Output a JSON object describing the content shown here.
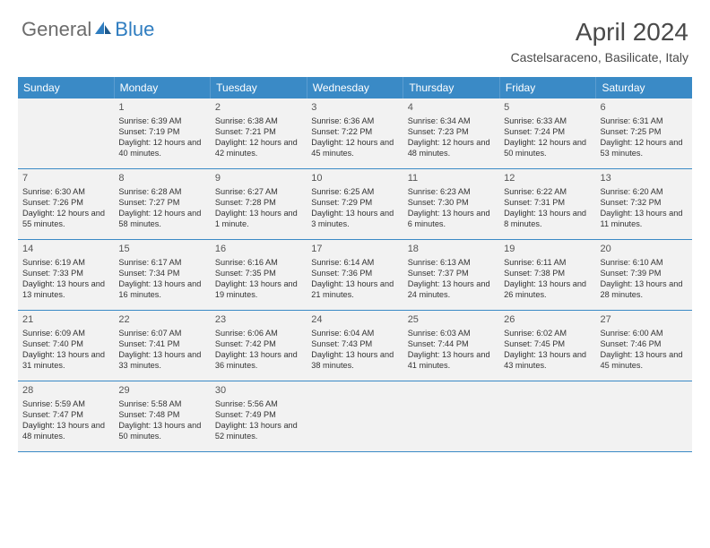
{
  "logo": {
    "part1": "General",
    "part2": "Blue"
  },
  "title": "April 2024",
  "location": "Castelsaraceno, Basilicate, Italy",
  "weekdays": [
    "Sunday",
    "Monday",
    "Tuesday",
    "Wednesday",
    "Thursday",
    "Friday",
    "Saturday"
  ],
  "colors": {
    "header_bg": "#3a8ac6",
    "header_text": "#ffffff",
    "cell_bg": "#f2f2f2",
    "text": "#333333",
    "logo_gray": "#6c6c6c",
    "logo_blue": "#2f7dc0",
    "row_border": "#3a8ac6"
  },
  "weeks": [
    [
      {
        "day": "",
        "sunrise": "",
        "sunset": "",
        "daylight": ""
      },
      {
        "day": "1",
        "sunrise": "Sunrise: 6:39 AM",
        "sunset": "Sunset: 7:19 PM",
        "daylight": "Daylight: 12 hours and 40 minutes."
      },
      {
        "day": "2",
        "sunrise": "Sunrise: 6:38 AM",
        "sunset": "Sunset: 7:21 PM",
        "daylight": "Daylight: 12 hours and 42 minutes."
      },
      {
        "day": "3",
        "sunrise": "Sunrise: 6:36 AM",
        "sunset": "Sunset: 7:22 PM",
        "daylight": "Daylight: 12 hours and 45 minutes."
      },
      {
        "day": "4",
        "sunrise": "Sunrise: 6:34 AM",
        "sunset": "Sunset: 7:23 PM",
        "daylight": "Daylight: 12 hours and 48 minutes."
      },
      {
        "day": "5",
        "sunrise": "Sunrise: 6:33 AM",
        "sunset": "Sunset: 7:24 PM",
        "daylight": "Daylight: 12 hours and 50 minutes."
      },
      {
        "day": "6",
        "sunrise": "Sunrise: 6:31 AM",
        "sunset": "Sunset: 7:25 PM",
        "daylight": "Daylight: 12 hours and 53 minutes."
      }
    ],
    [
      {
        "day": "7",
        "sunrise": "Sunrise: 6:30 AM",
        "sunset": "Sunset: 7:26 PM",
        "daylight": "Daylight: 12 hours and 55 minutes."
      },
      {
        "day": "8",
        "sunrise": "Sunrise: 6:28 AM",
        "sunset": "Sunset: 7:27 PM",
        "daylight": "Daylight: 12 hours and 58 minutes."
      },
      {
        "day": "9",
        "sunrise": "Sunrise: 6:27 AM",
        "sunset": "Sunset: 7:28 PM",
        "daylight": "Daylight: 13 hours and 1 minute."
      },
      {
        "day": "10",
        "sunrise": "Sunrise: 6:25 AM",
        "sunset": "Sunset: 7:29 PM",
        "daylight": "Daylight: 13 hours and 3 minutes."
      },
      {
        "day": "11",
        "sunrise": "Sunrise: 6:23 AM",
        "sunset": "Sunset: 7:30 PM",
        "daylight": "Daylight: 13 hours and 6 minutes."
      },
      {
        "day": "12",
        "sunrise": "Sunrise: 6:22 AM",
        "sunset": "Sunset: 7:31 PM",
        "daylight": "Daylight: 13 hours and 8 minutes."
      },
      {
        "day": "13",
        "sunrise": "Sunrise: 6:20 AM",
        "sunset": "Sunset: 7:32 PM",
        "daylight": "Daylight: 13 hours and 11 minutes."
      }
    ],
    [
      {
        "day": "14",
        "sunrise": "Sunrise: 6:19 AM",
        "sunset": "Sunset: 7:33 PM",
        "daylight": "Daylight: 13 hours and 13 minutes."
      },
      {
        "day": "15",
        "sunrise": "Sunrise: 6:17 AM",
        "sunset": "Sunset: 7:34 PM",
        "daylight": "Daylight: 13 hours and 16 minutes."
      },
      {
        "day": "16",
        "sunrise": "Sunrise: 6:16 AM",
        "sunset": "Sunset: 7:35 PM",
        "daylight": "Daylight: 13 hours and 19 minutes."
      },
      {
        "day": "17",
        "sunrise": "Sunrise: 6:14 AM",
        "sunset": "Sunset: 7:36 PM",
        "daylight": "Daylight: 13 hours and 21 minutes."
      },
      {
        "day": "18",
        "sunrise": "Sunrise: 6:13 AM",
        "sunset": "Sunset: 7:37 PM",
        "daylight": "Daylight: 13 hours and 24 minutes."
      },
      {
        "day": "19",
        "sunrise": "Sunrise: 6:11 AM",
        "sunset": "Sunset: 7:38 PM",
        "daylight": "Daylight: 13 hours and 26 minutes."
      },
      {
        "day": "20",
        "sunrise": "Sunrise: 6:10 AM",
        "sunset": "Sunset: 7:39 PM",
        "daylight": "Daylight: 13 hours and 28 minutes."
      }
    ],
    [
      {
        "day": "21",
        "sunrise": "Sunrise: 6:09 AM",
        "sunset": "Sunset: 7:40 PM",
        "daylight": "Daylight: 13 hours and 31 minutes."
      },
      {
        "day": "22",
        "sunrise": "Sunrise: 6:07 AM",
        "sunset": "Sunset: 7:41 PM",
        "daylight": "Daylight: 13 hours and 33 minutes."
      },
      {
        "day": "23",
        "sunrise": "Sunrise: 6:06 AM",
        "sunset": "Sunset: 7:42 PM",
        "daylight": "Daylight: 13 hours and 36 minutes."
      },
      {
        "day": "24",
        "sunrise": "Sunrise: 6:04 AM",
        "sunset": "Sunset: 7:43 PM",
        "daylight": "Daylight: 13 hours and 38 minutes."
      },
      {
        "day": "25",
        "sunrise": "Sunrise: 6:03 AM",
        "sunset": "Sunset: 7:44 PM",
        "daylight": "Daylight: 13 hours and 41 minutes."
      },
      {
        "day": "26",
        "sunrise": "Sunrise: 6:02 AM",
        "sunset": "Sunset: 7:45 PM",
        "daylight": "Daylight: 13 hours and 43 minutes."
      },
      {
        "day": "27",
        "sunrise": "Sunrise: 6:00 AM",
        "sunset": "Sunset: 7:46 PM",
        "daylight": "Daylight: 13 hours and 45 minutes."
      }
    ],
    [
      {
        "day": "28",
        "sunrise": "Sunrise: 5:59 AM",
        "sunset": "Sunset: 7:47 PM",
        "daylight": "Daylight: 13 hours and 48 minutes."
      },
      {
        "day": "29",
        "sunrise": "Sunrise: 5:58 AM",
        "sunset": "Sunset: 7:48 PM",
        "daylight": "Daylight: 13 hours and 50 minutes."
      },
      {
        "day": "30",
        "sunrise": "Sunrise: 5:56 AM",
        "sunset": "Sunset: 7:49 PM",
        "daylight": "Daylight: 13 hours and 52 minutes."
      },
      {
        "day": "",
        "sunrise": "",
        "sunset": "",
        "daylight": ""
      },
      {
        "day": "",
        "sunrise": "",
        "sunset": "",
        "daylight": ""
      },
      {
        "day": "",
        "sunrise": "",
        "sunset": "",
        "daylight": ""
      },
      {
        "day": "",
        "sunrise": "",
        "sunset": "",
        "daylight": ""
      }
    ]
  ]
}
